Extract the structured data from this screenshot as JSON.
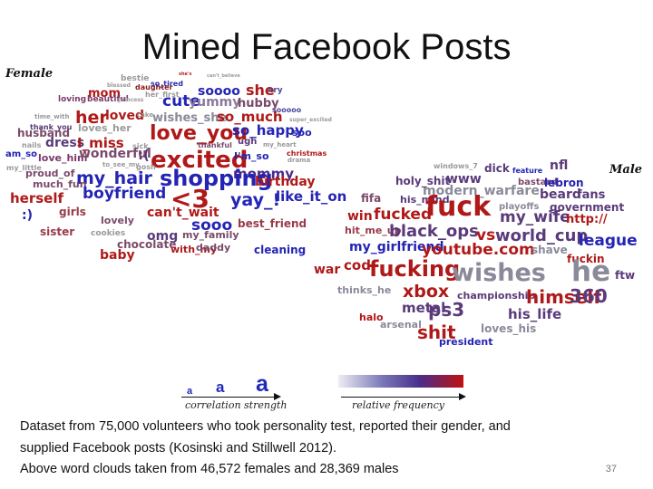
{
  "title": "Mined Facebook Posts",
  "female_label": "Female",
  "male_label": "Male",
  "female_words": [
    {
      "t": "bestie",
      "c": "#9a9a9a",
      "s": 9
    },
    {
      "t": "she's",
      "c": "#b22222",
      "s": 5
    },
    {
      "t": "can't_believe",
      "c": "#9a9a9a",
      "s": 5
    },
    {
      "t": "blessed",
      "c": "#9a9a9a",
      "s": 6
    },
    {
      "t": "daughter",
      "c": "#8b1a1a",
      "s": 8
    },
    {
      "t": "so_tired",
      "c": "#2a2ab0",
      "s": 8
    },
    {
      "t": "mom",
      "c": "#b01919",
      "s": 13
    },
    {
      "t": "her_first",
      "c": "#9a9a9a",
      "s": 8
    },
    {
      "t": "soooo",
      "c": "#2424b5",
      "s": 14
    },
    {
      "t": "she",
      "c": "#b01919",
      "s": 16
    },
    {
      "t": "cry",
      "c": "#4a4aa0",
      "s": 9
    },
    {
      "t": "loving",
      "c": "#7a3a6a",
      "s": 9
    },
    {
      "t": "beautiful",
      "c": "#7a3a6a",
      "s": 9
    },
    {
      "t": "princess",
      "c": "#9a9a9a",
      "s": 6
    },
    {
      "t": "cute",
      "c": "#2424b5",
      "s": 17
    },
    {
      "t": "yummy",
      "c": "#8a7a9a",
      "s": 14
    },
    {
      "t": "hubby",
      "c": "#7a4a6a",
      "s": 13
    },
    {
      "t": "sooooo",
      "c": "#4a4aa0",
      "s": 8
    },
    {
      "t": "time_with",
      "c": "#9a9a9a",
      "s": 7
    },
    {
      "t": "her",
      "c": "#b01919",
      "s": 19
    },
    {
      "t": "loved",
      "c": "#b01919",
      "s": 14
    },
    {
      "t": "cake",
      "c": "#9a9a9a",
      "s": 7
    },
    {
      "t": "wishes_she",
      "c": "#8a8a9a",
      "s": 13
    },
    {
      "t": "so_much",
      "c": "#b01919",
      "s": 15
    },
    {
      "t": "super_excited",
      "c": "#9a9a9a",
      "s": 6
    },
    {
      "t": "thank_you",
      "c": "#5a3a7a",
      "s": 8
    },
    {
      "t": "husband",
      "c": "#7a4a6a",
      "s": 12
    },
    {
      "t": "loves_her",
      "c": "#9a9a9a",
      "s": 11
    },
    {
      "t": "love_you",
      "c": "#b01919",
      "s": 22
    },
    {
      "t": "so_happy",
      "c": "#2424b5",
      "s": 15
    },
    {
      "t": "soo",
      "c": "#2424b5",
      "s": 11
    },
    {
      "t": "nails",
      "c": "#9a9a9a",
      "s": 8
    },
    {
      "t": "dress",
      "c": "#5a3a7a",
      "s": 14
    },
    {
      "t": "I_miss",
      "c": "#b01919",
      "s": 15
    },
    {
      "t": "sick",
      "c": "#9a9a9a",
      "s": 8
    },
    {
      "t": "thankful",
      "c": "#7a4a6a",
      "s": 8
    },
    {
      "t": "ugh",
      "c": "#5a3a7a",
      "s": 10
    },
    {
      "t": "my_heart",
      "c": "#9a9a9a",
      "s": 7
    },
    {
      "t": "christmas",
      "c": "#b01919",
      "s": 8
    },
    {
      "t": "am_so",
      "c": "#2424b5",
      "s": 10
    },
    {
      "t": "love_him",
      "c": "#7a3a6a",
      "s": 11
    },
    {
      "t": "wonderful",
      "c": "#7a4a6a",
      "s": 14
    },
    {
      "t": ":(",
      "c": "#5a3a7a",
      "s": 15
    },
    {
      "t": "excited",
      "c": "#b01919",
      "s": 26
    },
    {
      "t": "I'm_so",
      "c": "#2424b5",
      "s": 11
    },
    {
      "t": "drama",
      "c": "#9a9a9a",
      "s": 7
    },
    {
      "t": "my_little",
      "c": "#9a9a9a",
      "s": 8
    },
    {
      "t": "proud_of",
      "c": "#7a4a6a",
      "s": 11
    },
    {
      "t": "to_see_my",
      "c": "#9a9a9a",
      "s": 7
    },
    {
      "t": "gosh",
      "c": "#9a9a9a",
      "s": 8
    },
    {
      "t": "mommy",
      "c": "#4a2a8a",
      "s": 15
    },
    {
      "t": "my_hair",
      "c": "#2424b5",
      "s": 19
    },
    {
      "t": "shopping",
      "c": "#2424b5",
      "s": 24
    },
    {
      "t": "birthday",
      "c": "#b01919",
      "s": 14
    },
    {
      "t": "much_fun",
      "c": "#7a4a6a",
      "s": 11
    },
    {
      "t": "herself",
      "c": "#b01919",
      "s": 15
    },
    {
      "t": "boyfriend",
      "c": "#2424b5",
      "s": 17
    },
    {
      "t": "<3",
      "c": "#b01919",
      "s": 28
    },
    {
      "t": "yay_!",
      "c": "#2424b5",
      "s": 19
    },
    {
      "t": "like_it_on",
      "c": "#2424b5",
      "s": 15
    },
    {
      "t": ":)",
      "c": "#2424b5",
      "s": 14
    },
    {
      "t": "girls",
      "c": "#9a3a4a",
      "s": 12
    },
    {
      "t": "can't_wait",
      "c": "#b01919",
      "s": 14
    },
    {
      "t": "lovely",
      "c": "#7a4a6a",
      "s": 11
    },
    {
      "t": "sooo",
      "c": "#2424b5",
      "s": 17
    },
    {
      "t": "best_friend",
      "c": "#9a3a4a",
      "s": 12
    },
    {
      "t": "sister",
      "c": "#9a3a4a",
      "s": 12
    },
    {
      "t": "cookies",
      "c": "#9a9a9a",
      "s": 9
    },
    {
      "t": "omg",
      "c": "#5a3a7a",
      "s": 14
    },
    {
      "t": "my_family",
      "c": "#7a4a6a",
      "s": 11
    },
    {
      "t": "chocolate",
      "c": "#7a4a6a",
      "s": 12
    },
    {
      "t": "baby",
      "c": "#b01919",
      "s": 14
    },
    {
      "t": "with_my",
      "c": "#b01919",
      "s": 11
    },
    {
      "t": "daddy",
      "c": "#7a4a6a",
      "s": 11
    },
    {
      "t": "cleaning",
      "c": "#2424b5",
      "s": 12
    }
  ],
  "male_words": [
    {
      "t": "windows_7",
      "c": "#9a9a9a",
      "s": 8
    },
    {
      "t": "dick",
      "c": "#5a3a7a",
      "s": 12
    },
    {
      "t": "feature",
      "c": "#2424b5",
      "s": 8
    },
    {
      "t": "nfl",
      "c": "#5a3a7a",
      "s": 14
    },
    {
      "t": "holy_shit",
      "c": "#5a3a7a",
      "s": 12
    },
    {
      "t": "www",
      "c": "#5a3a7a",
      "s": 14
    },
    {
      "t": "bastard",
      "c": "#7a4a6a",
      "s": 10
    },
    {
      "t": "lebron",
      "c": "#2424b5",
      "s": 12
    },
    {
      "t": "modern_warfare",
      "c": "#8a8a9a",
      "s": 14
    },
    {
      "t": "beard",
      "c": "#5a3a7a",
      "s": 14
    },
    {
      "t": "fans",
      "c": "#5a3a7a",
      "s": 13
    },
    {
      "t": "fifa",
      "c": "#7a4a6a",
      "s": 12
    },
    {
      "t": "his_mind",
      "c": "#5a3a7a",
      "s": 11
    },
    {
      "t": "playoffs",
      "c": "#8a8a9a",
      "s": 10
    },
    {
      "t": "government",
      "c": "#5a3a7a",
      "s": 12
    },
    {
      "t": "win",
      "c": "#b01919",
      "s": 14
    },
    {
      "t": "fucked",
      "c": "#b01919",
      "s": 17
    },
    {
      "t": "fuck",
      "c": "#b01919",
      "s": 30
    },
    {
      "t": "my_wife",
      "c": "#5a3a7a",
      "s": 17
    },
    {
      "t": "http://",
      "c": "#b01919",
      "s": 13
    },
    {
      "t": "hit_me_up",
      "c": "#9a3a4a",
      "s": 11
    },
    {
      "t": "black_ops",
      "c": "#5a3a7a",
      "s": 18
    },
    {
      "t": "vs",
      "c": "#b01919",
      "s": 17
    },
    {
      "t": "world_cup",
      "c": "#5a3a7a",
      "s": 18
    },
    {
      "t": "league",
      "c": "#2424b5",
      "s": 17
    },
    {
      "t": "my_girlfriend",
      "c": "#2424b5",
      "s": 14
    },
    {
      "t": "youtube.com",
      "c": "#b01919",
      "s": 17
    },
    {
      "t": "shave",
      "c": "#8a8a9a",
      "s": 12
    },
    {
      "t": "fuckin",
      "c": "#b01919",
      "s": 12
    },
    {
      "t": "war",
      "c": "#b01919",
      "s": 14
    },
    {
      "t": "cod",
      "c": "#b01919",
      "s": 15
    },
    {
      "t": "fucking",
      "c": "#b01919",
      "s": 24
    },
    {
      "t": "wishes",
      "c": "#8a8a9a",
      "s": 27
    },
    {
      "t": "he",
      "c": "#8a8a9a",
      "s": 31
    },
    {
      "t": "ftw",
      "c": "#5a3a7a",
      "s": 12
    },
    {
      "t": "thinks_he",
      "c": "#8a8a9a",
      "s": 11
    },
    {
      "t": "xbox",
      "c": "#b01919",
      "s": 19
    },
    {
      "t": "championship",
      "c": "#5a3a7a",
      "s": 11
    },
    {
      "t": "himself",
      "c": "#b01919",
      "s": 20
    },
    {
      "t": "360",
      "c": "#5a3a7a",
      "s": 20
    },
    {
      "t": "metal",
      "c": "#5a3a7a",
      "s": 15
    },
    {
      "t": "ps3",
      "c": "#5a3a7a",
      "s": 20
    },
    {
      "t": "his_life",
      "c": "#5a3a7a",
      "s": 15
    },
    {
      "t": "halo",
      "c": "#b01919",
      "s": 11
    },
    {
      "t": "arsenal",
      "c": "#8a8a9a",
      "s": 11
    },
    {
      "t": "shit",
      "c": "#b01919",
      "s": 20
    },
    {
      "t": "loves_his",
      "c": "#8a8a9a",
      "s": 12
    },
    {
      "t": "president",
      "c": "#2424b5",
      "s": 11
    }
  ],
  "legend": {
    "a_small": "a",
    "a_medium": "a",
    "a_large": "a",
    "correlation_label": "correlation strength",
    "frequency_label": "relative frequency"
  },
  "caption": {
    "line1": "Dataset from 75,000 volunteers who took personality test, reported their gender, and",
    "line2": "supplied Facebook posts (Kosinski and Stillwell 2012).",
    "line3": "Above word clouds taken from 46,572 females and 28,369 males"
  },
  "page_number": "37"
}
